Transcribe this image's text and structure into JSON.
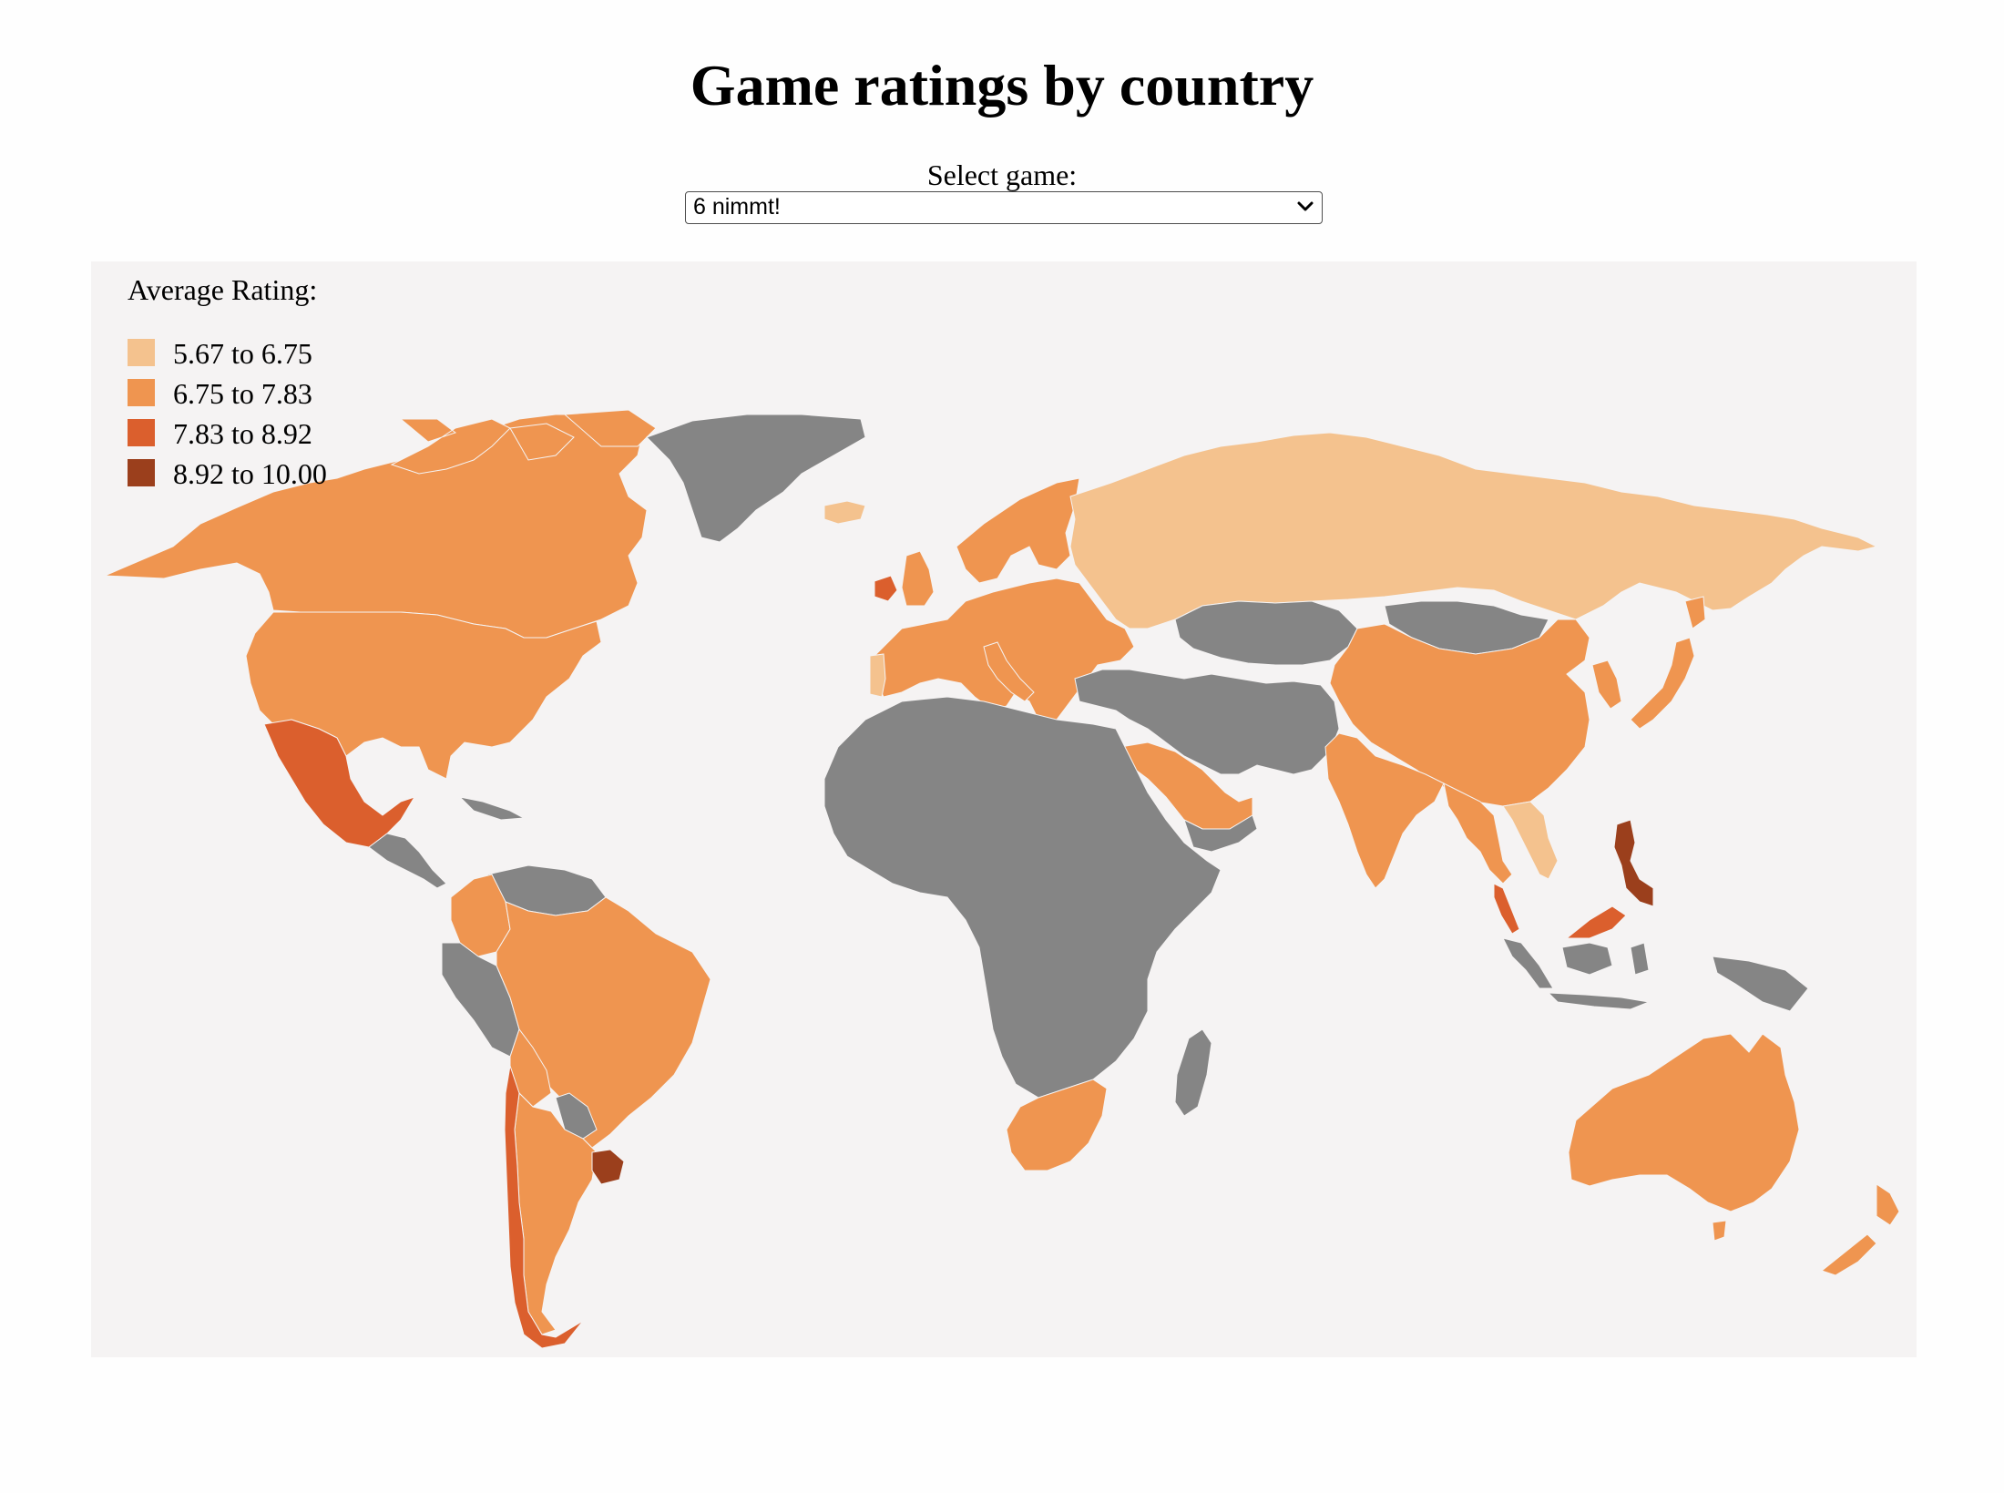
{
  "title": "Game ratings by country",
  "selector": {
    "label": "Select game:",
    "selected": "6 nimmt!"
  },
  "legend": {
    "title": "Average Rating:",
    "items": [
      {
        "label": "5.67 to 6.75",
        "color": "#f4c28e"
      },
      {
        "label": "6.75 to 7.83",
        "color": "#ef9550"
      },
      {
        "label": "7.83 to 8.92",
        "color": "#db5f2d"
      },
      {
        "label": "8.92 to 10.00",
        "color": "#9b3f1c"
      }
    ],
    "no_data_color": "#858585"
  },
  "colors": {
    "background": "#fefefe",
    "map_background": "#f5f3f3",
    "no_data": "#858585"
  },
  "regions": [
    {
      "name": "Canada",
      "tier": 1
    },
    {
      "name": "United States",
      "tier": 1
    },
    {
      "name": "Greenland",
      "tier": null
    },
    {
      "name": "Iceland",
      "tier": 0
    },
    {
      "name": "Mexico",
      "tier": 2
    },
    {
      "name": "Central America",
      "tier": null
    },
    {
      "name": "Colombia",
      "tier": 1
    },
    {
      "name": "Venezuela",
      "tier": null
    },
    {
      "name": "Peru",
      "tier": null
    },
    {
      "name": "Brazil",
      "tier": 1
    },
    {
      "name": "Bolivia",
      "tier": 1
    },
    {
      "name": "Paraguay",
      "tier": null
    },
    {
      "name": "Argentina",
      "tier": 1
    },
    {
      "name": "Chile",
      "tier": 2
    },
    {
      "name": "Uruguay",
      "tier": 3
    },
    {
      "name": "Europe",
      "tier": 1
    },
    {
      "name": "Ireland",
      "tier": 2
    },
    {
      "name": "Portugal",
      "tier": 0
    },
    {
      "name": "Russia",
      "tier": 0
    },
    {
      "name": "Kazakhstan",
      "tier": null
    },
    {
      "name": "Mongolia",
      "tier": null
    },
    {
      "name": "China",
      "tier": 1
    },
    {
      "name": "Middle East",
      "tier": null
    },
    {
      "name": "Saudi Arabia",
      "tier": 1
    },
    {
      "name": "India",
      "tier": 1
    },
    {
      "name": "Southeast Asia",
      "tier": 1
    },
    {
      "name": "Vietnam",
      "tier": 0
    },
    {
      "name": "Malaysia",
      "tier": 2
    },
    {
      "name": "Philippines",
      "tier": 3
    },
    {
      "name": "Indonesia",
      "tier": null
    },
    {
      "name": "Japan",
      "tier": 1
    },
    {
      "name": "Korea",
      "tier": 1
    },
    {
      "name": "Africa",
      "tier": null
    },
    {
      "name": "South Africa",
      "tier": 1
    },
    {
      "name": "Madagascar",
      "tier": null
    },
    {
      "name": "Australia",
      "tier": 1
    },
    {
      "name": "New Zealand",
      "tier": 1
    }
  ]
}
